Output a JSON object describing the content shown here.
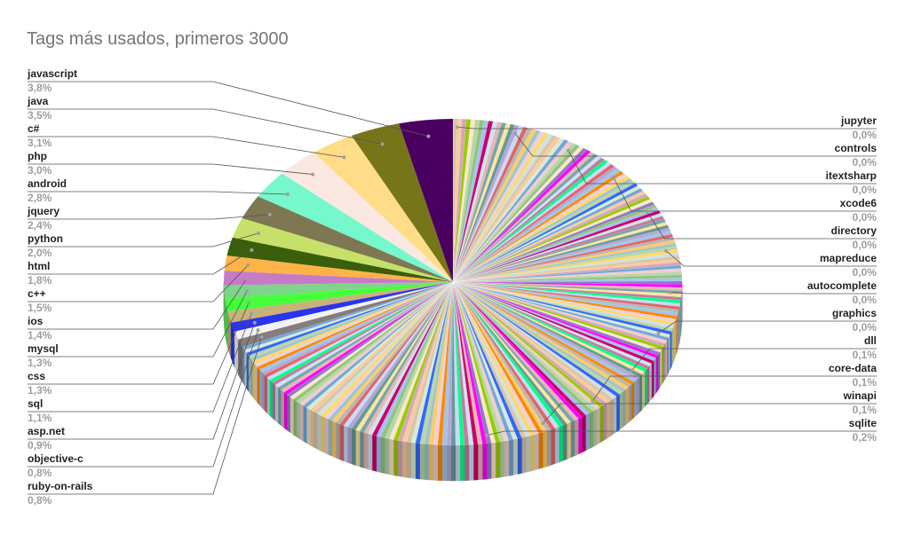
{
  "chart_data": {
    "type": "pie",
    "variant": "3d",
    "title": "Tags más usados, primeros 3000",
    "slices": [
      {
        "name": "javascript",
        "value_label": "3,8%",
        "value": 3.8,
        "color": "#4a0060"
      },
      {
        "name": "java",
        "value_label": "3,5%",
        "value": 3.5,
        "color": "#777519"
      },
      {
        "name": "c#",
        "value_label": "3,1%",
        "value": 3.1,
        "color": "#ffdd88"
      },
      {
        "name": "php",
        "value_label": "3,0%",
        "value": 3.0,
        "color": "#fbe8e2"
      },
      {
        "name": "android",
        "value_label": "2,8%",
        "value": 2.8,
        "color": "#77f7cc"
      },
      {
        "name": "jquery",
        "value_label": "2,4%",
        "value": 2.4,
        "color": "#7d7752"
      },
      {
        "name": "python",
        "value_label": "2,0%",
        "value": 2.0,
        "color": "#c6e06a"
      },
      {
        "name": "html",
        "value_label": "1,8%",
        "value": 1.8,
        "color": "#3a5e09"
      },
      {
        "name": "c++",
        "value_label": "1,5%",
        "value": 1.5,
        "color": "#ffb347"
      },
      {
        "name": "ios",
        "value_label": "1,4%",
        "value": 1.4,
        "color": "#c77bc7"
      },
      {
        "name": "mysql",
        "value_label": "1,3%",
        "value": 1.3,
        "color": "#7ed48a"
      },
      {
        "name": "css",
        "value_label": "1,3%",
        "value": 1.3,
        "color": "#44ff3a"
      },
      {
        "name": "sql",
        "value_label": "1,1%",
        "value": 1.1,
        "color": "#c8b27a"
      },
      {
        "name": "asp.net",
        "value_label": "0,9%",
        "value": 0.9,
        "color": "#2a33ee"
      },
      {
        "name": "objective-c",
        "value_label": "0,8%",
        "value": 0.8,
        "color": "#f2f2f2"
      },
      {
        "name": "ruby-on-rails",
        "value_label": "0,8%",
        "value": 0.8,
        "color": "#867c7c"
      },
      {
        "name": "sqlite",
        "value_label": "0,2%",
        "value": 0.2,
        "color": "#c9a86a"
      },
      {
        "name": "winapi",
        "value_label": "0,1%",
        "value": 0.1,
        "color": "#9ad07a"
      },
      {
        "name": "core-data",
        "value_label": "0,1%",
        "value": 0.1,
        "color": "#8ac7c0"
      },
      {
        "name": "dll",
        "value_label": "0,1%",
        "value": 0.1,
        "color": "#b7a0d0"
      },
      {
        "name": "graphics",
        "value_label": "0,0%",
        "value": 0.0,
        "color": "#a7d68a"
      },
      {
        "name": "autocomplete",
        "value_label": "0,0%",
        "value": 0.0,
        "color": "#c9d3a0"
      },
      {
        "name": "mapreduce",
        "value_label": "0,0%",
        "value": 0.0,
        "color": "#e0c89a"
      },
      {
        "name": "directory",
        "value_label": "0,0%",
        "value": 0.0,
        "color": "#d8c0a8"
      },
      {
        "name": "xcode6",
        "value_label": "0,0%",
        "value": 0.0,
        "color": "#c0d8b0"
      },
      {
        "name": "itextsharp",
        "value_label": "0,0%",
        "value": 0.0,
        "color": "#b8c8a0"
      },
      {
        "name": "controls",
        "value_label": "0,0%",
        "value": 0.0,
        "color": "#a0b890"
      },
      {
        "name": "jupyter",
        "value_label": "0,0%",
        "value": 0.0,
        "color": "#c0c0c0"
      }
    ],
    "legend": "none",
    "labels_left": [
      "javascript",
      "java",
      "c#",
      "php",
      "android",
      "jquery",
      "python",
      "html",
      "c++",
      "ios",
      "mysql",
      "css",
      "sql",
      "asp.net",
      "objective-c",
      "ruby-on-rails"
    ],
    "labels_right": [
      "jupyter",
      "controls",
      "itextsharp",
      "xcode6",
      "directory",
      "mapreduce",
      "autocomplete",
      "graphics",
      "dll",
      "core-data",
      "winapi",
      "sqlite"
    ]
  }
}
